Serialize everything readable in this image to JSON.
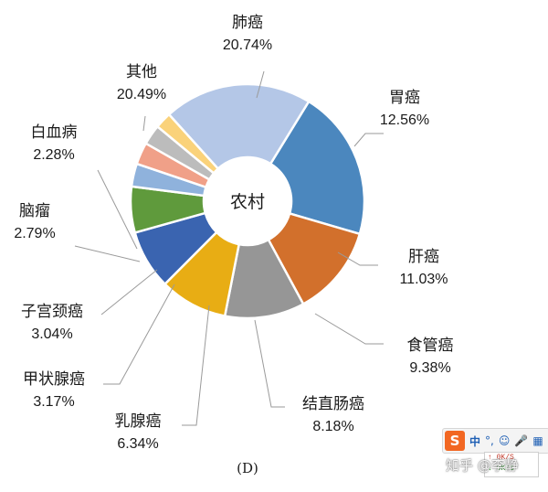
{
  "chart_data": {
    "type": "pie",
    "subtype": "donut",
    "center_label": "农村",
    "caption": "(D)",
    "slices": [
      {
        "label": "肺癌",
        "value": 20.74,
        "value_text": "20.74%",
        "color": "#4b87be"
      },
      {
        "label": "胃癌",
        "value": 12.56,
        "value_text": "12.56%",
        "color": "#d2702c"
      },
      {
        "label": "肝癌",
        "value": 11.03,
        "value_text": "11.03%",
        "color": "#969696"
      },
      {
        "label": "食管癌",
        "value": 9.38,
        "value_text": "9.38%",
        "color": "#e8ad14"
      },
      {
        "label": "结直肠癌",
        "value": 8.18,
        "value_text": "8.18%",
        "color": "#3a64b0"
      },
      {
        "label": "乳腺癌",
        "value": 6.34,
        "value_text": "6.34%",
        "color": "#5f9a3c"
      },
      {
        "label": "甲状腺癌",
        "value": 3.17,
        "value_text": "3.17%",
        "color": "#8fb2dc"
      },
      {
        "label": "子宫颈癌",
        "value": 3.04,
        "value_text": "3.04%",
        "color": "#f0a088"
      },
      {
        "label": "脑瘤",
        "value": 2.79,
        "value_text": "2.79%",
        "color": "#bcbcbc"
      },
      {
        "label": "白血病",
        "value": 2.28,
        "value_text": "2.28%",
        "color": "#fad27a"
      },
      {
        "label": "其他",
        "value": 20.49,
        "value_text": "20.49%",
        "color": "#b4c7e7"
      }
    ]
  },
  "overlay": {
    "ime_logo": "S",
    "ime_mode": "中",
    "ime_icons": [
      "°,",
      "☺",
      "🎤",
      "▦"
    ],
    "speed_up": "↑ 0K/S",
    "speed_down": "↓ 0K/S",
    "watermark": "知乎 @李静"
  }
}
